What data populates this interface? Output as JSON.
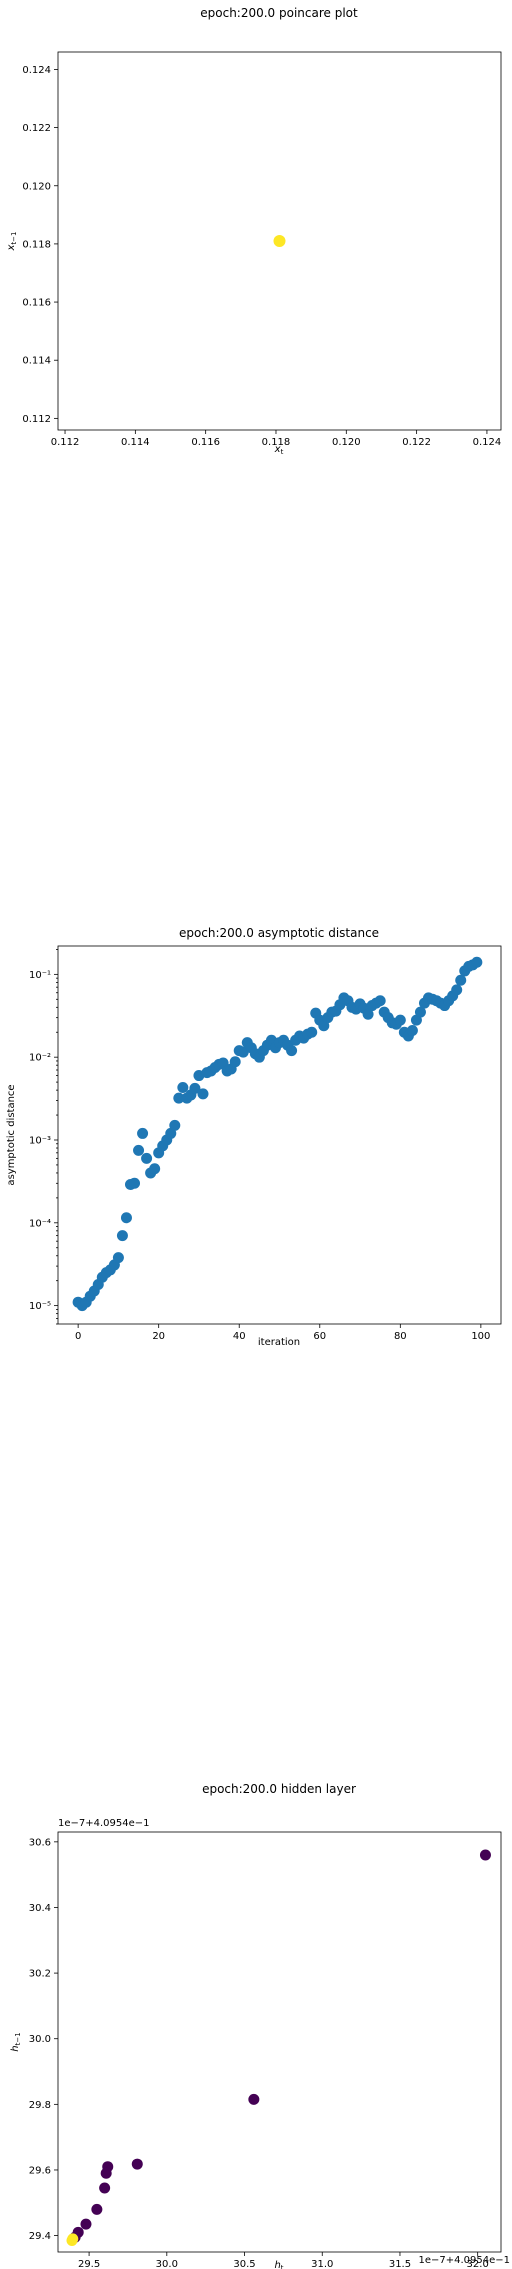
{
  "chart_data": [
    {
      "type": "scatter",
      "title": "epoch:200.0 poincare plot",
      "xlabel": "x_t",
      "ylabel": "x_t−1",
      "xlim": [
        0.1118,
        0.1244
      ],
      "ylim": [
        0.1116,
        0.1246
      ],
      "xticks": [
        "0.112",
        "0.114",
        "0.116",
        "0.118",
        "0.120",
        "0.122",
        "0.124"
      ],
      "xtick_values": [
        0.112,
        0.114,
        0.116,
        0.118,
        0.12,
        0.122,
        0.124
      ],
      "yticks": [
        "0.112",
        "0.114",
        "0.116",
        "0.118",
        "0.120",
        "0.122",
        "0.124"
      ],
      "ytick_values": [
        0.112,
        0.114,
        0.116,
        0.118,
        0.12,
        0.122,
        0.124
      ],
      "points": [
        {
          "x": 0.1181,
          "y": 0.1181
        }
      ],
      "point_color": "#fde725",
      "grid": false
    },
    {
      "type": "scatter",
      "title": "epoch:200.0 asymptotic distance",
      "xlabel": "iteration",
      "ylabel": "asymptotic distance",
      "yscale": "log",
      "xlim": [
        -5,
        105
      ],
      "ylim": [
        6e-06,
        0.22
      ],
      "xticks": [
        "0",
        "20",
        "40",
        "60",
        "80",
        "100"
      ],
      "xtick_values": [
        0,
        20,
        40,
        60,
        80,
        100
      ],
      "yticks": [
        "10⁻⁵",
        "10⁻⁴",
        "10⁻³",
        "10⁻²",
        "10⁻¹"
      ],
      "ytick_values": [
        1e-05,
        0.0001,
        0.001,
        0.01,
        0.1
      ],
      "x": [
        0,
        1,
        2,
        3,
        4,
        5,
        6,
        7,
        8,
        9,
        10,
        11,
        12,
        13,
        14,
        15,
        16,
        17,
        18,
        19,
        20,
        21,
        22,
        23,
        24,
        25,
        26,
        27,
        28,
        29,
        30,
        31,
        32,
        33,
        34,
        35,
        36,
        37,
        38,
        39,
        40,
        41,
        42,
        43,
        44,
        45,
        46,
        47,
        48,
        49,
        50,
        51,
        52,
        53,
        54,
        55,
        56,
        57,
        58,
        59,
        60,
        61,
        62,
        63,
        64,
        65,
        66,
        67,
        68,
        69,
        70,
        71,
        72,
        73,
        74,
        75,
        76,
        77,
        78,
        79,
        80,
        81,
        82,
        83,
        84,
        85,
        86,
        87,
        88,
        89,
        90,
        91,
        92,
        93,
        94,
        95,
        96,
        97,
        98,
        99
      ],
      "y": [
        1.1e-05,
        1e-05,
        1.1e-05,
        1.3e-05,
        1.5e-05,
        1.8e-05,
        2.2e-05,
        2.5e-05,
        2.7e-05,
        3.1e-05,
        3.8e-05,
        7e-05,
        0.000115,
        0.00029,
        0.0003,
        0.00075,
        0.0012,
        0.0006,
        0.0004,
        0.00045,
        0.0007,
        0.00085,
        0.001,
        0.0012,
        0.0015,
        0.0032,
        0.0043,
        0.0032,
        0.0035,
        0.0042,
        0.006,
        0.0036,
        0.0065,
        0.0068,
        0.0075,
        0.0082,
        0.0085,
        0.0068,
        0.0072,
        0.0088,
        0.012,
        0.0115,
        0.015,
        0.013,
        0.011,
        0.01,
        0.012,
        0.014,
        0.016,
        0.013,
        0.015,
        0.016,
        0.014,
        0.012,
        0.016,
        0.018,
        0.017,
        0.019,
        0.02,
        0.034,
        0.028,
        0.024,
        0.03,
        0.035,
        0.036,
        0.043,
        0.052,
        0.048,
        0.04,
        0.038,
        0.044,
        0.039,
        0.033,
        0.042,
        0.045,
        0.048,
        0.035,
        0.03,
        0.026,
        0.025,
        0.028,
        0.02,
        0.018,
        0.021,
        0.028,
        0.035,
        0.045,
        0.052,
        0.05,
        0.048,
        0.045,
        0.042,
        0.048,
        0.055,
        0.065,
        0.085,
        0.11,
        0.125,
        0.13,
        0.14
      ],
      "point_color": "#1f77b4",
      "grid": false
    },
    {
      "type": "scatter",
      "title": "epoch:200.0 hidden layer",
      "xlabel": "h_t",
      "ylabel": "h_t−1",
      "x_offset_label": "1e−7+4.0954e−1",
      "y_offset_label": "1e−7+4.0954e−1",
      "xlim": [
        29.3,
        32.15
      ],
      "ylim": [
        29.35,
        30.63
      ],
      "xticks": [
        "29.5",
        "30.0",
        "30.5",
        "31.0",
        "31.5",
        "32.0"
      ],
      "xtick_values": [
        29.5,
        30.0,
        30.5,
        31.0,
        31.5,
        32.0
      ],
      "yticks": [
        "29.4",
        "29.6",
        "29.8",
        "30.0",
        "30.2",
        "30.4",
        "30.6"
      ],
      "ytick_values": [
        29.4,
        29.6,
        29.8,
        30.0,
        30.2,
        30.4,
        30.6
      ],
      "points": [
        {
          "x": 32.05,
          "y": 30.56,
          "color": "#440154"
        },
        {
          "x": 30.56,
          "y": 29.815,
          "color": "#440154"
        },
        {
          "x": 29.81,
          "y": 29.618,
          "color": "#440154"
        },
        {
          "x": 29.62,
          "y": 29.61,
          "color": "#440154"
        },
        {
          "x": 29.61,
          "y": 29.59,
          "color": "#440154"
        },
        {
          "x": 29.6,
          "y": 29.545,
          "color": "#440154"
        },
        {
          "x": 29.55,
          "y": 29.48,
          "color": "#440154"
        },
        {
          "x": 29.48,
          "y": 29.435,
          "color": "#440154"
        },
        {
          "x": 29.43,
          "y": 29.41,
          "color": "#440154"
        },
        {
          "x": 29.41,
          "y": 29.395,
          "color": "#440154"
        },
        {
          "x": 29.395,
          "y": 29.39,
          "color": "#fde725"
        },
        {
          "x": 29.39,
          "y": 29.385,
          "color": "#fde725"
        }
      ],
      "grid": false
    }
  ]
}
